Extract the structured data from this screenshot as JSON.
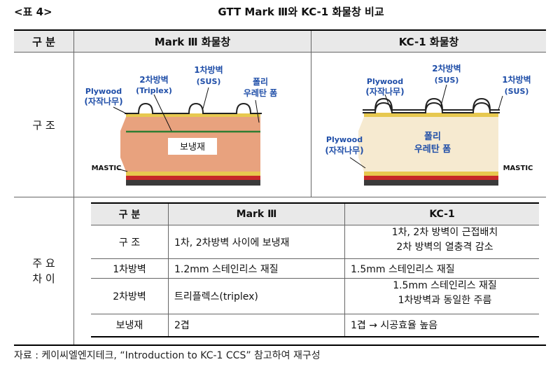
{
  "header": {
    "table_no": "<표 4>",
    "title": "GTT Mark Ⅲ와 KC-1 화물창 비교"
  },
  "outer_table": {
    "col_headers": [
      "구 분",
      "Mark Ⅲ 화물창",
      "KC-1 화물창"
    ],
    "row_labels": {
      "structure": "구 조",
      "main_diff": [
        "주 요",
        "차 이"
      ]
    }
  },
  "figure_mark3": {
    "labels": {
      "plywood": "Plywood",
      "plywood_kr": "(자작나무)",
      "secondary_barrier": "2차방벽",
      "secondary_barrier_sub": "(Triplex)",
      "primary_barrier": "1차방벽",
      "primary_barrier_sub": "(SUS)",
      "foam_1": "폴리",
      "foam_2": "우레탄 폼",
      "insulation": "보냉재",
      "mastic": "MASTIC"
    },
    "colors": {
      "insulation": "#e8a27e",
      "barrier_line": "#2e7d32",
      "base": "#3a3a3a",
      "accent": "#c62828"
    }
  },
  "figure_kc1": {
    "labels": {
      "plywood_top": "Plywood",
      "plywood_top_kr": "(자작나무)",
      "secondary_barrier": "2차방벽",
      "secondary_barrier_sub": "(SUS)",
      "primary_barrier": "1차방벽",
      "primary_barrier_sub": "(SUS)",
      "plywood_bottom": "Plywood",
      "plywood_bottom_kr": "(자작나무)",
      "foam_1": "폴리",
      "foam_2": "우레탄 폼",
      "mastic": "MASTIC"
    },
    "colors": {
      "insulation": "#f6ead0"
    }
  },
  "inner_table": {
    "headers": [
      "구 분",
      "Mark Ⅲ",
      "KC-1"
    ],
    "rows": [
      {
        "label": "구 조",
        "mark3": [
          "1차, 2차방벽 사이에 보냉재"
        ],
        "kc1": [
          "1차, 2차 방벽이 근접배치",
          "2차 방벽의 열충격 감소"
        ]
      },
      {
        "label": "1차방벽",
        "mark3": [
          "1.2mm 스테인리스 재질"
        ],
        "kc1": [
          "1.5mm 스테인리스 재질"
        ]
      },
      {
        "label": "2차방벽",
        "mark3": [
          "트리플렉스(triplex)"
        ],
        "kc1": [
          "1.5mm 스테인리스 재질",
          "1차방벽과 동일한 주름"
        ]
      },
      {
        "label": "보냉재",
        "mark3": [
          "2겹"
        ],
        "kc1": [
          "1겹 → 시공효율 높음"
        ]
      }
    ]
  },
  "source": "자료 : 케이씨엘엔지테크, “Introduction to KC-1 CCS” 참고하여 재구성"
}
